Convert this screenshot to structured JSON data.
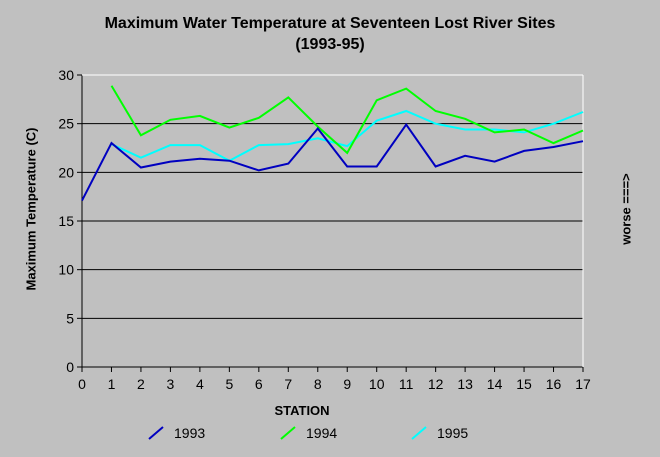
{
  "chart_data": {
    "type": "line",
    "title": "Maximum Water Temperature at Seventeen Lost River Sites",
    "subtitle": "(1993-95)",
    "xlabel": "STATION",
    "ylabel": "Maximum Temperature (C)",
    "right_label": "worse ===>",
    "x": [
      0,
      1,
      2,
      3,
      4,
      5,
      6,
      7,
      8,
      9,
      10,
      11,
      12,
      13,
      14,
      15,
      16,
      17
    ],
    "xlim": [
      0,
      17
    ],
    "ylim": [
      0,
      30
    ],
    "yticks": [
      0,
      5,
      10,
      15,
      20,
      25,
      30
    ],
    "grid": true,
    "legend_position": "bottom",
    "series": [
      {
        "name": "1993",
        "color": "#0000c0",
        "values": [
          17.1,
          23.0,
          20.5,
          21.1,
          21.4,
          21.2,
          20.2,
          20.9,
          24.5,
          20.6,
          20.6,
          24.9,
          20.6,
          21.7,
          21.1,
          22.2,
          22.6,
          23.2
        ]
      },
      {
        "name": "1994",
        "color": "#00ff00",
        "values": [
          null,
          28.9,
          23.8,
          25.4,
          25.8,
          24.6,
          25.6,
          27.7,
          24.7,
          22.0,
          27.4,
          28.6,
          26.3,
          25.5,
          24.1,
          24.4,
          23.0,
          24.3
        ]
      },
      {
        "name": "1995",
        "color": "#00ffff",
        "values": [
          null,
          22.9,
          21.5,
          22.8,
          22.8,
          21.2,
          22.8,
          22.9,
          23.5,
          22.7,
          25.3,
          26.3,
          25.0,
          24.4,
          24.4,
          24.1,
          25.0,
          26.2
        ]
      }
    ]
  }
}
